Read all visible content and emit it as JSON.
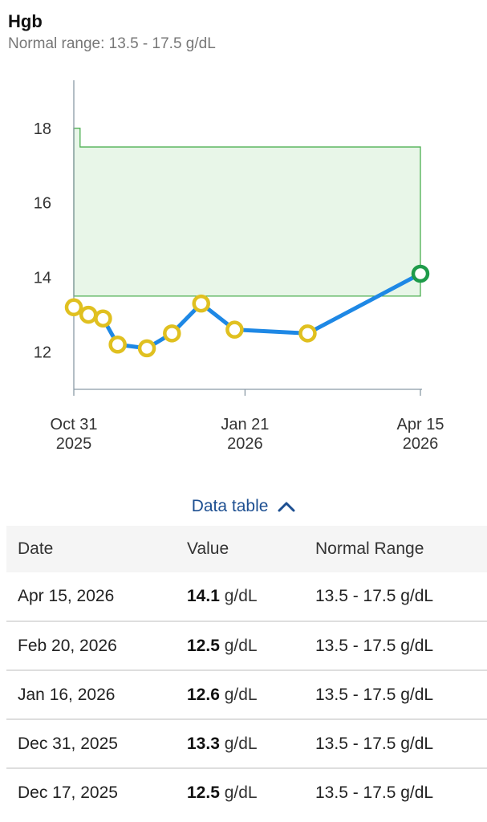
{
  "header": {
    "title": "Hgb",
    "subtitle": "Normal range: 13.5 - 17.5 g/dL"
  },
  "colors": {
    "line": "#1e88e5",
    "point_fill": "#ffffff",
    "point_stroke": "#e0c020",
    "latest_point_stroke": "#1e9b4a",
    "range_fill": "#e8f6e8",
    "range_stroke": "#4caf50",
    "axis": "#8a9aa6"
  },
  "chart_data": {
    "type": "line",
    "title": "",
    "xlabel": "",
    "ylabel": "",
    "ylim": [
      11.0,
      18.9
    ],
    "xlim": [
      "2025-10-31",
      "2026-04-15"
    ],
    "yticks": [
      "12",
      "14",
      "16",
      "18"
    ],
    "xticks": [
      {
        "line1": "Oct 31",
        "line2": "2025",
        "date": "2025-10-31"
      },
      {
        "line1": "Jan 21",
        "line2": "2026",
        "date": "2026-01-21"
      },
      {
        "line1": "Apr 15",
        "line2": "2026",
        "date": "2026-04-15"
      }
    ],
    "normal_range": {
      "low": 13.5,
      "segments": [
        {
          "start": "2025-10-31",
          "end": "2025-11-03",
          "high": 18.0
        },
        {
          "start": "2025-11-03",
          "end": "2026-04-15",
          "high": 17.5
        }
      ]
    },
    "series": [
      {
        "x": [
          "2025-10-31",
          "2025-11-07",
          "2025-11-14",
          "2025-11-21",
          "2025-12-05",
          "2025-12-17",
          "2025-12-31",
          "2026-01-16",
          "2026-02-20",
          "2026-04-15"
        ],
        "values": [
          13.2,
          13.0,
          12.9,
          12.2,
          12.1,
          12.5,
          13.3,
          12.6,
          12.5,
          14.1
        ]
      }
    ],
    "grid": false
  },
  "data_table": {
    "toggle_label": "Data table",
    "columns": [
      "Date",
      "Value",
      "Normal Range"
    ],
    "rows": [
      {
        "date": "Apr 15, 2026",
        "value": "14.1",
        "unit": "g/dL",
        "range": "13.5 - 17.5 g/dL"
      },
      {
        "date": "Feb 20, 2026",
        "value": "12.5",
        "unit": "g/dL",
        "range": "13.5 - 17.5 g/dL"
      },
      {
        "date": "Jan 16, 2026",
        "value": "12.6",
        "unit": "g/dL",
        "range": "13.5 - 17.5 g/dL"
      },
      {
        "date": "Dec 31, 2025",
        "value": "13.3",
        "unit": "g/dL",
        "range": "13.5 - 17.5 g/dL"
      },
      {
        "date": "Dec 17, 2025",
        "value": "12.5",
        "unit": "g/dL",
        "range": "13.5 - 17.5 g/dL"
      }
    ]
  }
}
